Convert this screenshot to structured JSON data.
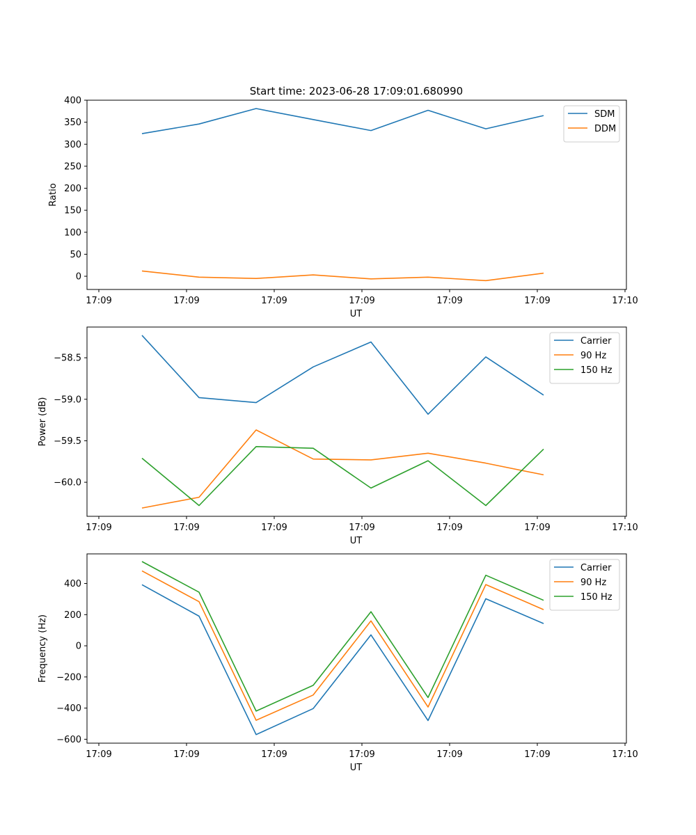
{
  "figure": {
    "title": "Start time: 2023-06-28 17:09:01.680990"
  },
  "colors": {
    "blue": "#1f77b4",
    "orange": "#ff7f0e",
    "green": "#2ca02c"
  },
  "chart_data": [
    {
      "type": "line",
      "title": "Start time: 2023-06-28 17:09:01.680990",
      "xlabel": "UT",
      "ylabel": "Ratio",
      "x_tick_labels": [
        "17:09",
        "17:09",
        "17:09",
        "17:09",
        "17:09",
        "17:09",
        "17:10"
      ],
      "ylim": [
        -30,
        400
      ],
      "y_ticks": [
        0,
        50,
        100,
        150,
        200,
        250,
        300,
        350,
        400
      ],
      "y_tick_labels": [
        "0",
        "50",
        "100",
        "150",
        "200",
        "250",
        "300",
        "350",
        "400"
      ],
      "grid": false,
      "legend": "top-right",
      "series": [
        {
          "name": "SDM",
          "color": "#1f77b4",
          "values": [
            324,
            346,
            381,
            356,
            331,
            377,
            335,
            365
          ]
        },
        {
          "name": "DDM",
          "color": "#ff7f0e",
          "values": [
            12,
            -2,
            -5,
            3,
            -6,
            -2,
            -10,
            7
          ]
        }
      ]
    },
    {
      "type": "line",
      "title": "",
      "xlabel": "UT",
      "ylabel": "Power (dB)",
      "x_tick_labels": [
        "17:09",
        "17:09",
        "17:09",
        "17:09",
        "17:09",
        "17:09",
        "17:10"
      ],
      "ylim": [
        -60.41,
        -58.13
      ],
      "y_ticks": [
        -60.0,
        -59.5,
        -59.0,
        -58.5
      ],
      "y_tick_labels": [
        "−60.0",
        "−59.5",
        "−59.0",
        "−58.5"
      ],
      "grid": false,
      "legend": "top-right",
      "series": [
        {
          "name": "Carrier",
          "color": "#1f77b4",
          "values": [
            -58.23,
            -58.98,
            -59.04,
            -58.61,
            -58.31,
            -59.18,
            -58.49,
            -58.95
          ]
        },
        {
          "name": "90 Hz",
          "color": "#ff7f0e",
          "values": [
            -60.31,
            -60.18,
            -59.37,
            -59.72,
            -59.73,
            -59.65,
            -59.77,
            -59.91
          ]
        },
        {
          "name": "150 Hz",
          "color": "#2ca02c",
          "values": [
            -59.71,
            -60.28,
            -59.57,
            -59.59,
            -60.07,
            -59.74,
            -60.28,
            -59.6
          ]
        }
      ]
    },
    {
      "type": "line",
      "title": "",
      "xlabel": "UT",
      "ylabel": "Frequency (Hz)",
      "x_tick_labels": [
        "17:09",
        "17:09",
        "17:09",
        "17:09",
        "17:09",
        "17:09",
        "17:10"
      ],
      "ylim": [
        -625,
        590
      ],
      "y_ticks": [
        -600,
        -400,
        -200,
        0,
        200,
        400
      ],
      "y_tick_labels": [
        "−600",
        "−400",
        "−200",
        "0",
        "200",
        "400"
      ],
      "grid": false,
      "legend": "top-right",
      "series": [
        {
          "name": "Carrier",
          "color": "#1f77b4",
          "values": [
            392,
            190,
            -570,
            -403,
            70,
            -480,
            302,
            143
          ]
        },
        {
          "name": "90 Hz",
          "color": "#ff7f0e",
          "values": [
            481,
            283,
            -478,
            -316,
            160,
            -393,
            393,
            232
          ]
        },
        {
          "name": "150 Hz",
          "color": "#2ca02c",
          "values": [
            541,
            344,
            -419,
            -254,
            219,
            -332,
            453,
            292
          ]
        }
      ]
    }
  ]
}
